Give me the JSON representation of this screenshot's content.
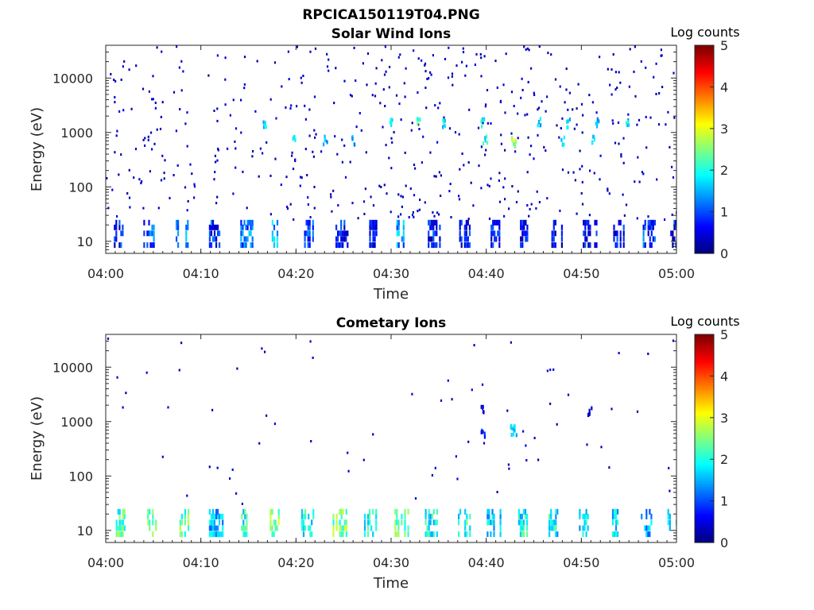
{
  "figure_title": "RPCICA150119T04.PNG",
  "chart_data": [
    {
      "type": "heatmap",
      "title": "Solar Wind Ions",
      "xlabel": "Time",
      "ylabel": "Energy (eV)",
      "x_ticks": [
        "04:00",
        "04:10",
        "04:20",
        "04:30",
        "04:40",
        "04:50",
        "05:00"
      ],
      "xlim": [
        "04:00",
        "05:00"
      ],
      "y_scale": "log",
      "y_ticks": [
        10,
        100,
        1000,
        10000
      ],
      "ylim": [
        6,
        40000
      ],
      "colorbar": {
        "label": "Log counts",
        "ticks": [
          0,
          1,
          2,
          3,
          4,
          5
        ],
        "range": [
          0,
          5
        ],
        "colormap": "jet"
      },
      "low_energy_bands": [
        {
          "t": 1.3,
          "level": 0.7
        },
        {
          "t": 4.4,
          "level": 1.0
        },
        {
          "t": 7.8,
          "level": 1.2
        },
        {
          "t": 11.3,
          "level": 0.8
        },
        {
          "t": 14.6,
          "level": 1.1
        },
        {
          "t": 17.9,
          "level": 1.4
        },
        {
          "t": 21.3,
          "level": 0.9
        },
        {
          "t": 24.6,
          "level": 0.6
        },
        {
          "t": 27.8,
          "level": 0.6
        },
        {
          "t": 31.0,
          "level": 1.3
        },
        {
          "t": 34.3,
          "level": 0.6
        },
        {
          "t": 37.6,
          "level": 0.7
        },
        {
          "t": 40.9,
          "level": 0.6
        },
        {
          "t": 44.0,
          "level": 0.6
        },
        {
          "t": 47.3,
          "level": 0.6
        },
        {
          "t": 50.6,
          "level": 0.6
        },
        {
          "t": 53.8,
          "level": 0.6
        },
        {
          "t": 56.9,
          "level": 0.9
        },
        {
          "t": 59.8,
          "level": 0.6
        }
      ],
      "hot_spots": [
        {
          "t": 30.0,
          "e": 1500,
          "level": 2.0
        },
        {
          "t": 32.8,
          "e": 1500,
          "level": 2.1
        },
        {
          "t": 35.5,
          "e": 1500,
          "level": 1.8
        },
        {
          "t": 39.5,
          "e": 1500,
          "level": 1.8
        },
        {
          "t": 39.8,
          "e": 700,
          "level": 1.9
        },
        {
          "t": 42.8,
          "e": 700,
          "level": 3.0
        },
        {
          "t": 43.0,
          "e": 600,
          "level": 2.6
        },
        {
          "t": 45.5,
          "e": 1500,
          "level": 1.7
        },
        {
          "t": 48.5,
          "e": 1500,
          "level": 1.6
        },
        {
          "t": 51.6,
          "e": 1500,
          "level": 1.5
        },
        {
          "t": 54.8,
          "e": 1500,
          "level": 1.7
        },
        {
          "t": 26.0,
          "e": 700,
          "level": 1.5
        },
        {
          "t": 23.0,
          "e": 700,
          "level": 1.6
        },
        {
          "t": 19.7,
          "e": 700,
          "level": 1.8
        },
        {
          "t": 16.6,
          "e": 1500,
          "level": 1.6
        },
        {
          "t": 48.0,
          "e": 700,
          "level": 1.6
        },
        {
          "t": 51.2,
          "e": 700,
          "level": 1.7
        }
      ]
    },
    {
      "type": "heatmap",
      "title": "Cometary Ions",
      "xlabel": "Time",
      "ylabel": "Energy (eV)",
      "x_ticks": [
        "04:00",
        "04:10",
        "04:20",
        "04:30",
        "04:40",
        "04:50",
        "05:00"
      ],
      "xlim": [
        "04:00",
        "05:00"
      ],
      "y_scale": "log",
      "y_ticks": [
        10,
        100,
        1000,
        10000
      ],
      "ylim": [
        6,
        40000
      ],
      "colorbar": {
        "label": "Log counts",
        "ticks": [
          0,
          1,
          2,
          3,
          4,
          5
        ],
        "range": [
          0,
          5
        ],
        "colormap": "jet"
      },
      "low_energy_bands": [
        {
          "t": 1.5,
          "level": 2.2
        },
        {
          "t": 4.8,
          "level": 2.4
        },
        {
          "t": 8.2,
          "level": 2.3
        },
        {
          "t": 11.3,
          "level": 1.6
        },
        {
          "t": 14.5,
          "level": 2.0
        },
        {
          "t": 17.7,
          "level": 2.6
        },
        {
          "t": 21.0,
          "level": 1.9
        },
        {
          "t": 24.3,
          "level": 2.4
        },
        {
          "t": 27.6,
          "level": 2.0
        },
        {
          "t": 30.8,
          "level": 2.3
        },
        {
          "t": 34.0,
          "level": 1.9
        },
        {
          "t": 37.3,
          "level": 2.0
        },
        {
          "t": 40.5,
          "level": 1.7
        },
        {
          "t": 43.8,
          "level": 1.9
        },
        {
          "t": 47.0,
          "level": 1.8
        },
        {
          "t": 50.2,
          "level": 1.8
        },
        {
          "t": 53.5,
          "level": 1.7
        },
        {
          "t": 56.7,
          "level": 1.4
        },
        {
          "t": 59.5,
          "level": 1.8
        }
      ],
      "hot_spots": [
        {
          "t": 39.5,
          "e": 1600,
          "level": 0.5
        },
        {
          "t": 39.6,
          "e": 650,
          "level": 0.6
        },
        {
          "t": 42.6,
          "e": 700,
          "level": 1.4
        },
        {
          "t": 43.0,
          "e": 700,
          "level": 1.6
        },
        {
          "t": 50.8,
          "e": 1500,
          "level": 0.4
        }
      ]
    }
  ]
}
